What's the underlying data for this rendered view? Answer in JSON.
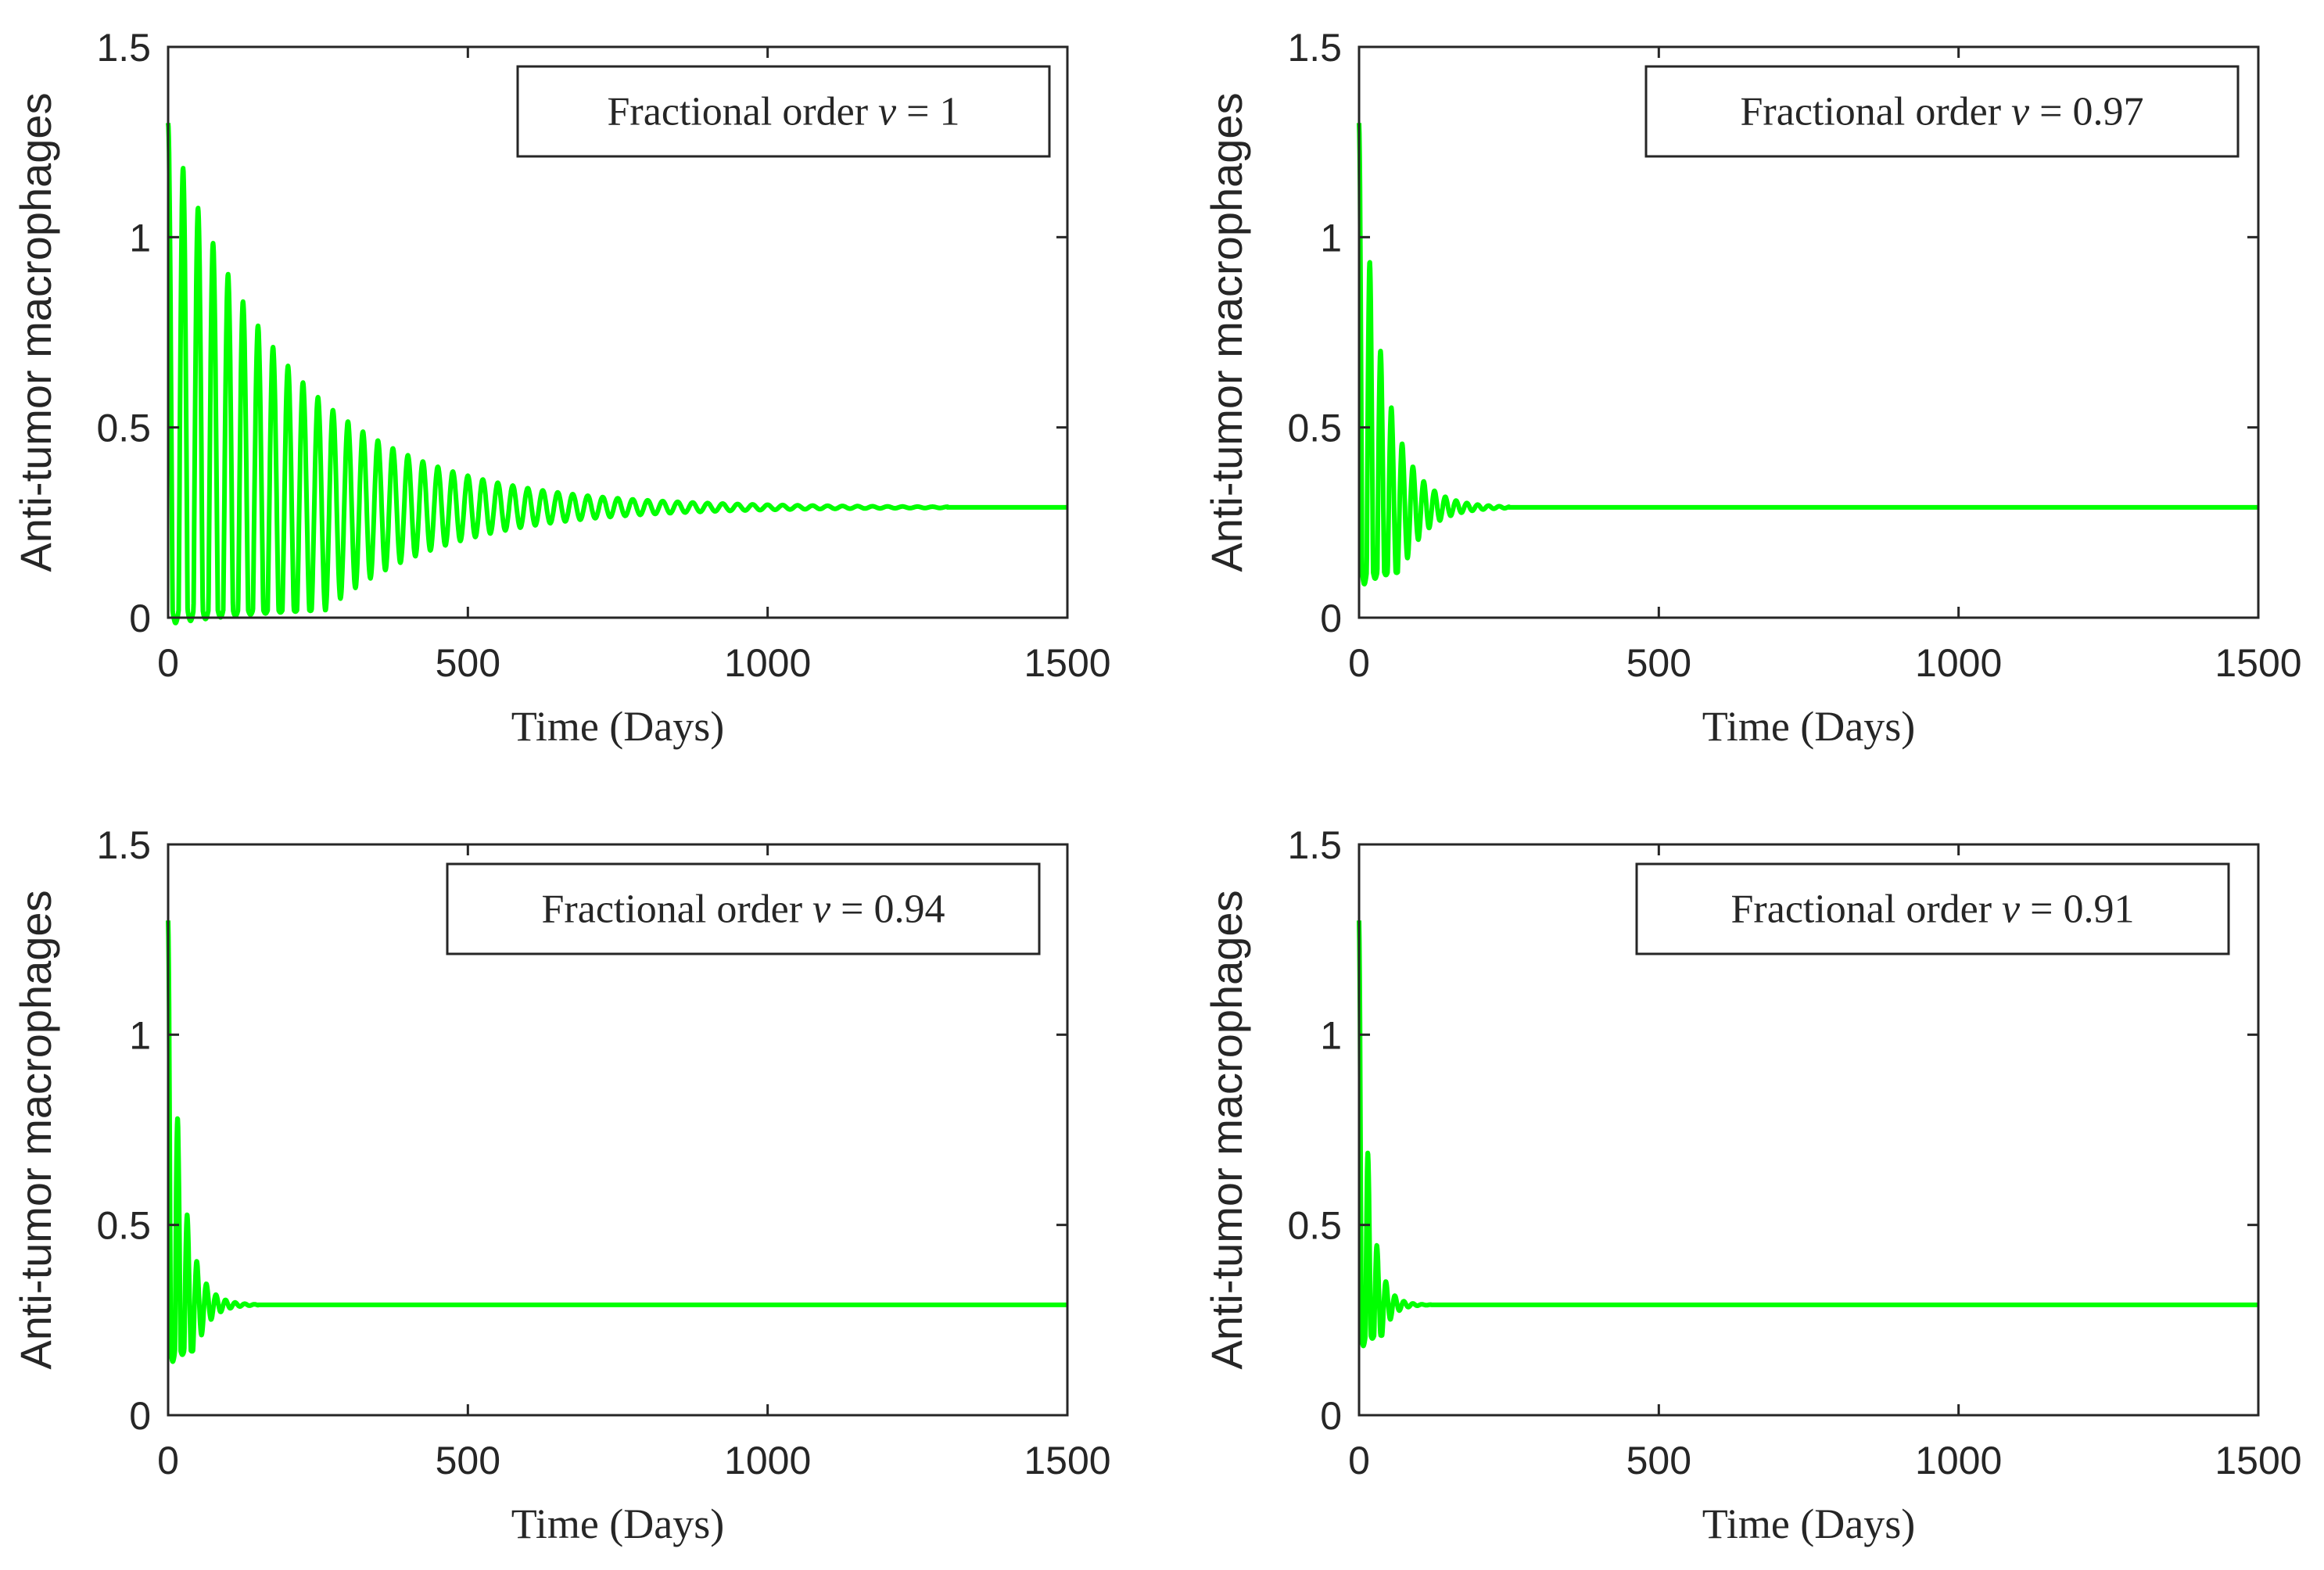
{
  "series_color": "#00ff00",
  "chart_data": [
    {
      "type": "line",
      "title": "",
      "legend_label": "Fractional order v = 1",
      "legend_prefix": "Fractional order ",
      "legend_var": "v",
      "legend_eq": " = ",
      "legend_value": "1",
      "xlabel": "Time (Days)",
      "ylabel": "Anti-tumor macrophages",
      "xlim": [
        0,
        1500
      ],
      "ylim": [
        0,
        1.5
      ],
      "xticks": [
        0,
        500,
        1000,
        1500
      ],
      "yticks": [
        0,
        0.5,
        1,
        1.5
      ],
      "xtick_labels": [
        "0",
        "500",
        "1000",
        "1500"
      ],
      "ytick_labels": [
        "0",
        "0.5",
        "1",
        "1.5"
      ],
      "legend_position": "top-right",
      "grid": false,
      "dynamics": {
        "y0": 1.3,
        "equilibrium": 0.29,
        "period_days": 25,
        "decay_days": 200,
        "first_min": 0.02,
        "settle_days": 1300
      }
    },
    {
      "type": "line",
      "title": "",
      "legend_label": "Fractional order v = 0.97",
      "legend_prefix": "Fractional order ",
      "legend_var": "v",
      "legend_eq": " = ",
      "legend_value": "0.97",
      "xlabel": "Time (Days)",
      "ylabel": "Anti-tumor macrophages",
      "xlim": [
        0,
        1500
      ],
      "ylim": [
        0,
        1.5
      ],
      "xticks": [
        0,
        500,
        1000,
        1500
      ],
      "yticks": [
        0,
        0.5,
        1,
        1.5
      ],
      "xtick_labels": [
        "0",
        "500",
        "1000",
        "1500"
      ],
      "ytick_labels": [
        "0",
        "0.5",
        "1",
        "1.5"
      ],
      "legend_position": "top-right",
      "grid": false,
      "dynamics": {
        "y0": 1.3,
        "equilibrium": 0.29,
        "period_days": 18,
        "decay_days": 40,
        "first_min": 0.12,
        "settle_days": 250
      }
    },
    {
      "type": "line",
      "title": "",
      "legend_label": "Fractional order v = 0.94",
      "legend_prefix": "Fractional order ",
      "legend_var": "v",
      "legend_eq": " = ",
      "legend_value": "0.94",
      "xlabel": "Time (Days)",
      "ylabel": "Anti-tumor macrophages",
      "xlim": [
        0,
        1500
      ],
      "ylim": [
        0,
        1.5
      ],
      "xticks": [
        0,
        500,
        1000,
        1500
      ],
      "yticks": [
        0,
        0.5,
        1,
        1.5
      ],
      "xtick_labels": [
        "0",
        "500",
        "1000",
        "1500"
      ],
      "ytick_labels": [
        "0",
        "0.5",
        "1",
        "1.5"
      ],
      "legend_position": "top-right",
      "grid": false,
      "dynamics": {
        "y0": 1.3,
        "equilibrium": 0.29,
        "period_days": 16,
        "decay_days": 22,
        "first_min": 0.17,
        "settle_days": 150
      }
    },
    {
      "type": "line",
      "title": "",
      "legend_label": "Fractional order v = 0.91",
      "legend_prefix": "Fractional order ",
      "legend_var": "v",
      "legend_eq": " = ",
      "legend_value": "0.91",
      "xlabel": "Time (Days)",
      "ylabel": "Anti-tumor macrophages",
      "xlim": [
        0,
        1500
      ],
      "ylim": [
        0,
        1.5
      ],
      "xticks": [
        0,
        500,
        1000,
        1500
      ],
      "yticks": [
        0,
        0.5,
        1,
        1.5
      ],
      "xtick_labels": [
        "0",
        "500",
        "1000",
        "1500"
      ],
      "ytick_labels": [
        "0",
        "0.5",
        "1",
        "1.5"
      ],
      "legend_position": "top-right",
      "grid": false,
      "dynamics": {
        "y0": 1.3,
        "equilibrium": 0.29,
        "period_days": 15,
        "decay_days": 16,
        "first_min": 0.21,
        "settle_days": 120
      }
    }
  ]
}
